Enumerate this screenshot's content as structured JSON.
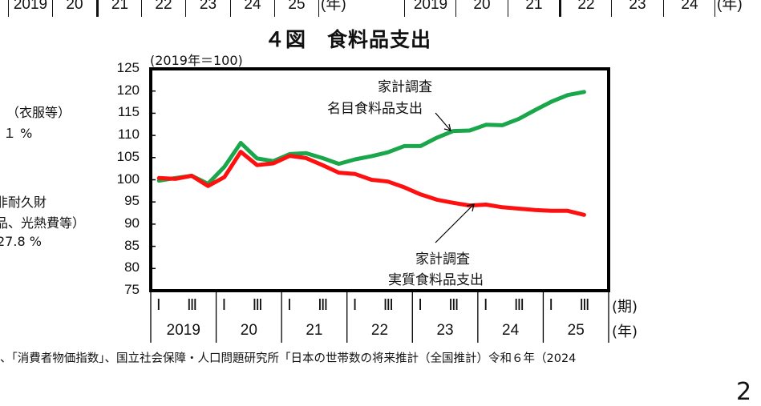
{
  "top_axis_left": {
    "labels": [
      "2019",
      "20",
      "21",
      "22",
      "23",
      "24",
      "25"
    ],
    "unit": "(年)"
  },
  "top_axis_right": {
    "labels": [
      "2019",
      "20",
      "21",
      "22",
      "23",
      "24"
    ],
    "unit": "(年)"
  },
  "left_panel_fragment": {
    "line1": "（衣服等）",
    "line2": "１ %",
    "line3": "非耐久財",
    "line4": "品、光熱費等）",
    "line5": "27.8 %"
  },
  "figure": {
    "title": "４図　食料品支出",
    "base_note": "(2019年＝100)",
    "label_nominal_line1": "家計調査",
    "label_nominal_line2": "名目食料品支出",
    "label_real_line1": "家計調査",
    "label_real_line2": "実質食料品支出",
    "period_unit": "(期)",
    "year_unit": "(年)",
    "quarter_marks": [
      "Ⅰ",
      "Ⅲ"
    ]
  },
  "footer": {
    "source_text": "、「消費者物価指数」、国立社会保障・人口問題研究所「日本の世帯数の将来推計（全国推計）令和６年（2024"
  },
  "page_number": "2",
  "colors": {
    "nominal": "#1aa64a",
    "real": "#ff1010",
    "axis": "#000000"
  },
  "chart_data": {
    "type": "line",
    "title": "４図　食料品支出",
    "subtitle": "(2019年＝100)",
    "xlabel": "(期) / (年)",
    "ylabel": "",
    "ylim": [
      75,
      125
    ],
    "yticks": [
      75,
      80,
      85,
      90,
      95,
      100,
      105,
      110,
      115,
      120,
      125
    ],
    "grid": false,
    "legend_position": "inline annotations with arrows",
    "x": [
      "2019Q1",
      "2019Q2",
      "2019Q3",
      "2019Q4",
      "2020Q1",
      "2020Q2",
      "2020Q3",
      "2020Q4",
      "2021Q1",
      "2021Q2",
      "2021Q3",
      "2021Q4",
      "2022Q1",
      "2022Q2",
      "2022Q3",
      "2022Q4",
      "2023Q1",
      "2023Q2",
      "2023Q3",
      "2023Q4",
      "2024Q1",
      "2024Q2",
      "2024Q3",
      "2024Q4",
      "2025Q1",
      "2025Q2",
      "2025Q3"
    ],
    "x_tick_labels_period": [
      "Ⅰ",
      "Ⅲ"
    ],
    "x_tick_labels_year": [
      "2019",
      "20",
      "21",
      "22",
      "23",
      "24",
      "25"
    ],
    "series": [
      {
        "name": "家計調査 名目食料品支出",
        "color": "#1aa64a",
        "values": [
          99.8,
          100.4,
          100.9,
          99.1,
          102.9,
          108.3,
          104.8,
          104.2,
          105.8,
          106.0,
          104.9,
          103.6,
          104.6,
          105.3,
          106.2,
          107.6,
          107.6,
          109.5,
          111.0,
          111.1,
          112.4,
          112.3,
          113.7,
          115.7,
          117.6,
          119.1,
          119.8
        ]
      },
      {
        "name": "家計調査 実質食料品支出",
        "color": "#ff1010",
        "values": [
          100.4,
          100.2,
          100.9,
          98.6,
          100.6,
          106.3,
          103.3,
          103.7,
          105.4,
          104.9,
          103.3,
          101.6,
          101.3,
          100.0,
          99.6,
          98.3,
          96.7,
          95.5,
          94.8,
          94.2,
          94.4,
          93.8,
          93.5,
          93.2,
          93.0,
          93.0,
          92.1
        ]
      }
    ]
  }
}
